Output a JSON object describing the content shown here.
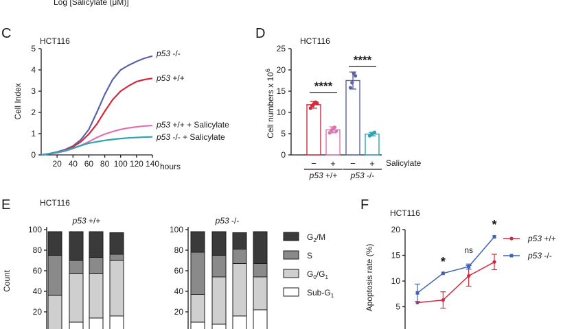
{
  "top_caption": "Log [Salicylate (μM)]",
  "panels": {
    "C": {
      "letter": "C",
      "cell_line": "HCT116",
      "chart_data": {
        "type": "line",
        "ylabel": "Cell Index",
        "xunit": "hours",
        "xlim": [
          0,
          140
        ],
        "ylim": [
          0,
          5
        ],
        "xticks": [
          20,
          40,
          60,
          80,
          100,
          120,
          140
        ],
        "yticks": [
          0,
          1,
          2,
          3,
          4,
          5
        ],
        "series": [
          {
            "gene": "p53",
            "genotype": "-/-",
            "suffix": "",
            "color": "#5a62a8",
            "x": [
              0,
              10,
              20,
              30,
              40,
              50,
              60,
              70,
              80,
              90,
              100,
              110,
              120,
              130,
              140
            ],
            "y": [
              0,
              0.06,
              0.14,
              0.25,
              0.42,
              0.72,
              1.2,
              2.0,
              2.85,
              3.55,
              4.0,
              4.22,
              4.4,
              4.55,
              4.65
            ]
          },
          {
            "gene": "p53",
            "genotype": "+/+",
            "suffix": "",
            "color": "#d4283c",
            "x": [
              0,
              10,
              20,
              30,
              40,
              50,
              60,
              70,
              80,
              90,
              100,
              110,
              120,
              130,
              140
            ],
            "y": [
              0,
              0.05,
              0.12,
              0.22,
              0.38,
              0.62,
              0.98,
              1.45,
              2.05,
              2.6,
              3.0,
              3.25,
              3.45,
              3.55,
              3.6
            ]
          },
          {
            "gene": "p53",
            "genotype": "+/+",
            "suffix": " + Salicylate",
            "color": "#e070b0",
            "x": [
              0,
              10,
              20,
              30,
              40,
              50,
              60,
              70,
              80,
              90,
              100,
              110,
              120,
              130,
              140
            ],
            "y": [
              0,
              0.05,
              0.1,
              0.18,
              0.3,
              0.45,
              0.62,
              0.82,
              0.98,
              1.1,
              1.2,
              1.27,
              1.32,
              1.36,
              1.38
            ]
          },
          {
            "gene": "p53",
            "genotype": "-/-",
            "suffix": " + Salicylate",
            "color": "#2aa6b4",
            "x": [
              0,
              10,
              20,
              30,
              40,
              50,
              60,
              70,
              80,
              90,
              100,
              110,
              120,
              130,
              140
            ],
            "y": [
              0,
              0.05,
              0.12,
              0.2,
              0.32,
              0.44,
              0.55,
              0.62,
              0.68,
              0.73,
              0.77,
              0.8,
              0.82,
              0.84,
              0.85
            ]
          }
        ]
      }
    },
    "D": {
      "letter": "D",
      "cell_line": "HCT116",
      "chart_data": {
        "type": "bar",
        "ylabel_main": "Cell numbers x 10",
        "ylabel_exp": "6",
        "ylim": [
          0,
          25
        ],
        "yticks": [
          0,
          5,
          10,
          15,
          20,
          25
        ],
        "treatment_label": "Salicylate",
        "groups": [
          {
            "gene": "p53",
            "genotype": "+/+"
          },
          {
            "gene": "p53",
            "genotype": "-/-"
          }
        ],
        "bars": [
          {
            "sign": "−",
            "value": 11.8,
            "sd": 0.8,
            "color": "#d4283c",
            "points": [
              11.0,
              11.6,
              12.0,
              12.4,
              12.2
            ]
          },
          {
            "sign": "+",
            "value": 5.9,
            "sd": 0.7,
            "color": "#e070b0",
            "points": [
              5.2,
              5.8,
              6.2,
              6.5,
              5.6
            ]
          },
          {
            "sign": "−",
            "value": 17.5,
            "sd": 2.0,
            "color": "#5a62a8",
            "points": [
              15.8,
              17.0,
              19.2,
              18.6
            ]
          },
          {
            "sign": "+",
            "value": 4.9,
            "sd": 0.4,
            "color": "#2aa6b4",
            "points": [
              4.5,
              4.8,
              5.1,
              5.3
            ]
          }
        ],
        "significance": [
          {
            "label": "****",
            "from": 0,
            "to": 1
          },
          {
            "label": "****",
            "from": 2,
            "to": 3
          }
        ]
      }
    },
    "E": {
      "letter": "E",
      "cell_line": "HCT116",
      "chart_data": {
        "type": "bar",
        "ylabel": "Count",
        "ylim": [
          0,
          100
        ],
        "yticks": [
          20,
          40,
          60,
          80,
          100
        ],
        "legend": [
          {
            "main": "G",
            "sub": "2",
            "rest": "/M",
            "color": "#3a3a3a"
          },
          {
            "main": "S",
            "sub": "",
            "rest": "",
            "color": "#8a8a8a"
          },
          {
            "main": "G",
            "sub": "0",
            "rest": "/G",
            "sub2": "1",
            "color": "#cfcfcf"
          },
          {
            "main": "Sub-G",
            "sub": "1",
            "rest": "",
            "color": "#ffffff"
          }
        ],
        "groups": [
          {
            "gene": "p53",
            "genotype": "+/+",
            "stacks": [
              {
                "subg1": 0,
                "g0g1": 36,
                "s": 75,
                "g2m": 98
              },
              {
                "subg1": 10,
                "g0g1": 57,
                "s": 70,
                "g2m": 98
              },
              {
                "subg1": 14,
                "g0g1": 57,
                "s": 73,
                "g2m": 98
              },
              {
                "subg1": 16,
                "g0g1": 70,
                "s": 76,
                "g2m": 97
              }
            ]
          },
          {
            "gene": "p53",
            "genotype": "-/-",
            "stacks": [
              {
                "subg1": 10,
                "g0g1": 37,
                "s": 78,
                "g2m": 98
              },
              {
                "subg1": 8,
                "g0g1": 54,
                "s": 75,
                "g2m": 98
              },
              {
                "subg1": 16,
                "g0g1": 67,
                "s": 81,
                "g2m": 97
              },
              {
                "subg1": 22,
                "g0g1": 54,
                "s": 67,
                "g2m": 98
              }
            ]
          }
        ]
      }
    },
    "F": {
      "letter": "F",
      "cell_line": "HCT116",
      "chart_data": {
        "type": "line",
        "ylabel": "Apoptosis rate (%)",
        "ylim": [
          0,
          20
        ],
        "yticks": [
          5,
          10,
          15,
          20
        ],
        "x": [
          1,
          2,
          3,
          4
        ],
        "series": [
          {
            "gene": "p53",
            "genotype": "+/+",
            "color": "#d4283c",
            "marker": "circle",
            "y": [
              5.8,
              6.3,
              11.0,
              13.7
            ],
            "err": [
              0,
              1.6,
              2.0,
              1.5
            ]
          },
          {
            "gene": "p53",
            "genotype": "-/-",
            "color": "#3d62b8",
            "marker": "square",
            "y": [
              7.7,
              11.5,
              12.8,
              18.6
            ],
            "err": [
              1.7,
              0,
              0.5,
              0
            ]
          }
        ],
        "annotations": [
          {
            "x": 2,
            "label": "*"
          },
          {
            "x": 3,
            "label": "ns"
          },
          {
            "x": 4,
            "label": "*"
          }
        ]
      }
    }
  }
}
